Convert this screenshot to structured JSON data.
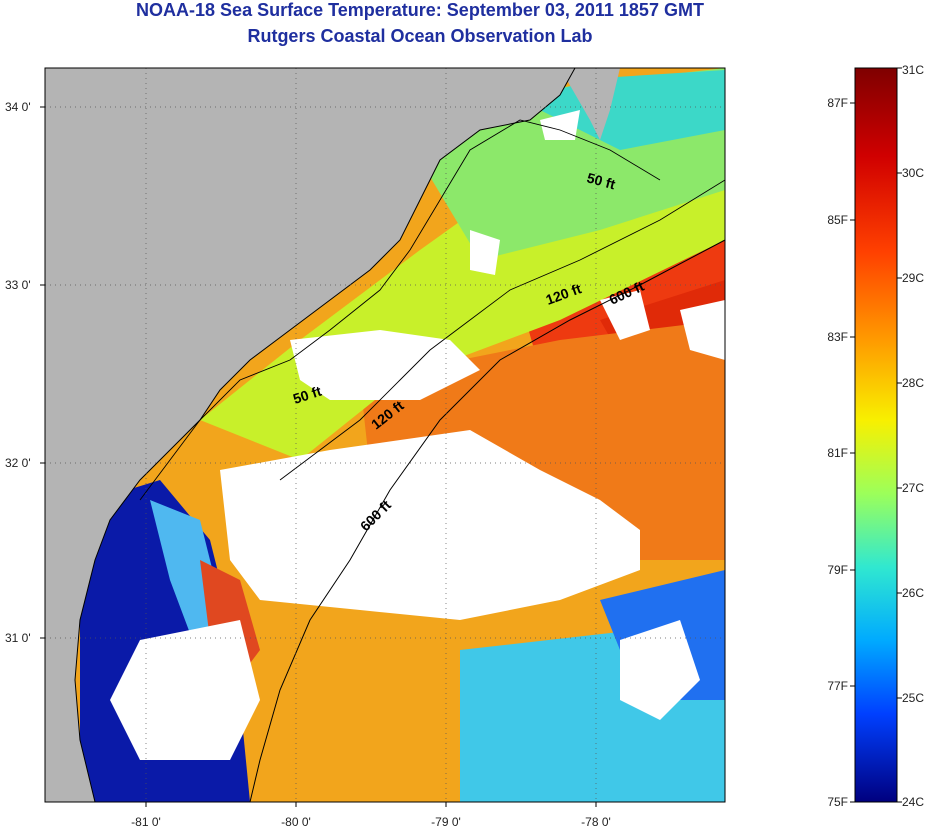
{
  "title": "NOAA-18 Sea Surface Temperature:  September 03, 2011 1857 GMT",
  "subtitle": "Rutgers Coastal Ocean Observation Lab",
  "lat_ticks": [
    "34 0'",
    "33 0'",
    "32 0'",
    "31 0'"
  ],
  "lon_ticks": [
    "-81 0'",
    "-80 0'",
    "-79 0'",
    "-78 0'"
  ],
  "contour_labels": [
    "50 ft",
    "120 ft",
    "600 ft",
    "50 ft",
    "120 ft",
    "600 ft"
  ],
  "colorbar": {
    "celsius": [
      "31C",
      "30C",
      "29C",
      "28C",
      "27C",
      "26C",
      "25C",
      "24C"
    ],
    "fahrenheit": [
      "87F",
      "85F",
      "83F",
      "81F",
      "79F",
      "77F",
      "75F"
    ]
  },
  "colors": {
    "title": "#1f2f9f",
    "land": "#b4b4b4",
    "cloud": "#ffffff"
  }
}
